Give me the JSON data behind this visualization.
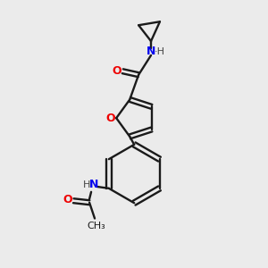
{
  "background_color": "#ebebeb",
  "bond_color": "#1a1a1a",
  "atom_colors": {
    "N": "#0000ee",
    "O": "#ee0000",
    "H": "#444444",
    "C": "#1a1a1a"
  },
  "figsize": [
    3.0,
    3.0
  ],
  "dpi": 100
}
